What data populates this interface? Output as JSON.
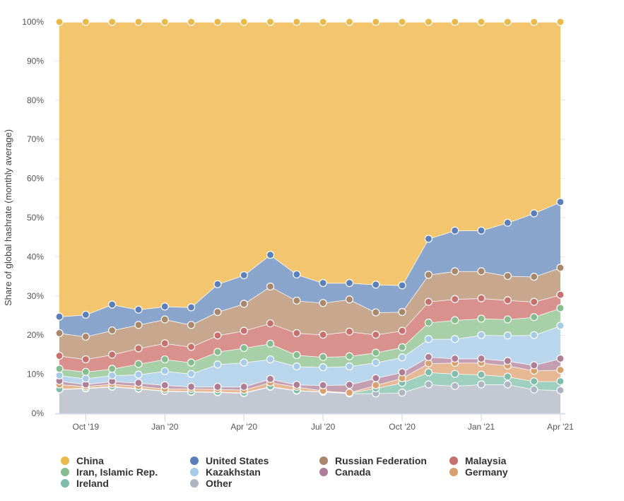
{
  "chart_data": {
    "type": "area",
    "stacked": true,
    "title": "",
    "xlabel": "",
    "ylabel": "Share of global hashrate (monthly average)",
    "ylim": [
      0,
      100
    ],
    "y_ticks": [
      "0%",
      "10%",
      "20%",
      "30%",
      "40%",
      "50%",
      "60%",
      "70%",
      "80%",
      "90%",
      "100%"
    ],
    "x_ticks": [
      {
        "month": "2019-10",
        "label": "Oct '19"
      },
      {
        "month": "2020-01",
        "label": "Jan '20"
      },
      {
        "month": "2020-04",
        "label": "Apr '20"
      },
      {
        "month": "2020-07",
        "label": "Jul '20"
      },
      {
        "month": "2020-10",
        "label": "Oct '20"
      },
      {
        "month": "2021-01",
        "label": "Jan '21"
      },
      {
        "month": "2021-04",
        "label": "Apr '21"
      }
    ],
    "grid": true,
    "legend": "bottom",
    "x": [
      "2019-09",
      "2019-10",
      "2019-11",
      "2019-12",
      "2020-01",
      "2020-02",
      "2020-03",
      "2020-04",
      "2020-05",
      "2020-06",
      "2020-07",
      "2020-08",
      "2020-09",
      "2020-10",
      "2020-11",
      "2020-12",
      "2021-01",
      "2021-02",
      "2021-03",
      "2021-04"
    ],
    "series": [
      {
        "name": "Other",
        "color": "#aeb4c2",
        "fill": "#c4c8d3",
        "values": [
          6.1,
          6.4,
          6.8,
          6.3,
          5.7,
          5.5,
          5.4,
          5.2,
          6.8,
          5.8,
          5.5,
          5.1,
          5.1,
          5.3,
          7.4,
          7.0,
          7.4,
          7.4,
          6.1,
          5.9
        ]
      },
      {
        "name": "Ireland",
        "color": "#7fbcaa",
        "fill": "#9fcfbf",
        "values": [
          0.1,
          0.1,
          0.1,
          0.1,
          0.1,
          0.1,
          0.1,
          0.1,
          0.1,
          0.1,
          0.1,
          0.1,
          1.3,
          2.5,
          3.1,
          3.1,
          2.5,
          2.0,
          2.1,
          2.3
        ]
      },
      {
        "name": "Germany",
        "color": "#d9a06e",
        "fill": "#e7b894",
        "values": [
          1.2,
          0.4,
          0.6,
          0.6,
          0.5,
          0.7,
          0.7,
          0.7,
          1.0,
          0.9,
          0.2,
          0.1,
          0.8,
          1.2,
          2.3,
          2.8,
          3.0,
          2.8,
          2.7,
          2.9
        ]
      },
      {
        "name": "Canada",
        "color": "#b07d96",
        "fill": "#c39fb1",
        "values": [
          0.9,
          0.5,
          0.7,
          0.8,
          0.9,
          0.5,
          0.6,
          0.8,
          0.9,
          0.5,
          1.4,
          2.0,
          1.8,
          1.5,
          1.6,
          1.1,
          1.1,
          1.2,
          1.4,
          2.9
        ]
      },
      {
        "name": "Kazakhstan",
        "color": "#a6cbe8",
        "fill": "#bad6ec",
        "values": [
          1.4,
          1.5,
          1.5,
          2.1,
          3.6,
          3.3,
          5.7,
          6.2,
          5.0,
          4.7,
          4.6,
          4.7,
          4.0,
          3.8,
          4.6,
          5.0,
          6.0,
          6.5,
          7.7,
          8.4
        ]
      },
      {
        "name": "Iran, Islamic Rep.",
        "color": "#86bd8f",
        "fill": "#a7d0a8",
        "values": [
          1.7,
          1.7,
          1.7,
          2.7,
          3.0,
          2.9,
          3.2,
          3.7,
          4.0,
          2.9,
          2.6,
          2.6,
          2.5,
          2.6,
          4.2,
          4.8,
          4.2,
          4.1,
          4.6,
          4.5
        ]
      },
      {
        "name": "Malaysia",
        "color": "#c8706e",
        "fill": "#d9918e",
        "values": [
          3.3,
          3.2,
          3.6,
          4.0,
          4.1,
          4.0,
          4.2,
          4.4,
          5.2,
          5.6,
          5.7,
          6.3,
          4.6,
          4.2,
          5.3,
          5.4,
          5.2,
          4.9,
          3.9,
          3.4
        ]
      },
      {
        "name": "Russian Federation",
        "color": "#a9876a",
        "fill": "#c7a88e",
        "values": [
          5.8,
          5.8,
          6.2,
          6.0,
          6.1,
          5.6,
          6.0,
          6.9,
          9.4,
          8.3,
          8.1,
          8.2,
          5.7,
          4.8,
          6.9,
          7.1,
          6.9,
          6.2,
          6.4,
          6.9
        ]
      },
      {
        "name": "United States",
        "color": "#5a7fba",
        "fill": "#8aa5cc",
        "values": [
          4.2,
          5.6,
          6.6,
          3.9,
          3.3,
          4.5,
          7.1,
          7.3,
          8.1,
          6.7,
          5.1,
          4.2,
          7.1,
          6.8,
          9.2,
          10.4,
          10.4,
          13.6,
          16.2,
          16.8
        ]
      },
      {
        "name": "China",
        "color": "#e9b949",
        "fill": "#f2c56e",
        "values": [
          75.3,
          74.8,
          72.2,
          73.5,
          72.7,
          72.9,
          67.0,
          64.7,
          59.5,
          64.5,
          66.7,
          66.7,
          67.1,
          67.3,
          55.4,
          53.3,
          53.3,
          51.3,
          48.9,
          46.0
        ]
      }
    ],
    "legend_order": [
      "China",
      "United States",
      "Russian Federation",
      "Malaysia",
      "Iran, Islamic Rep.",
      "Kazakhstan",
      "Canada",
      "Germany",
      "Ireland",
      "Other"
    ]
  }
}
